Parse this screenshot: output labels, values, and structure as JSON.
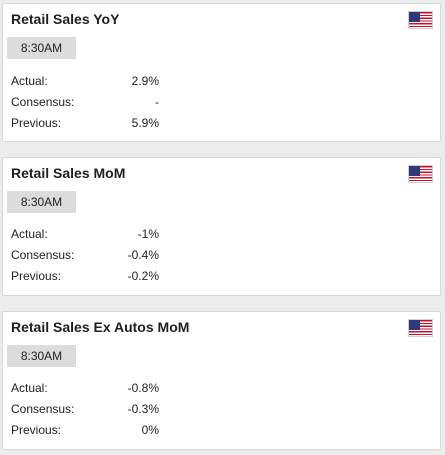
{
  "cards": [
    {
      "title": "Retail Sales YoY",
      "time": "8:30AM",
      "flag": "us-flag-icon",
      "rows": [
        {
          "label": "Actual:",
          "value": "2.9%"
        },
        {
          "label": "Consensus:",
          "value": "-"
        },
        {
          "label": "Previous:",
          "value": "5.9%"
        }
      ]
    },
    {
      "title": "Retail Sales MoM",
      "time": "8:30AM",
      "flag": "us-flag-icon",
      "rows": [
        {
          "label": "Actual:",
          "value": "-1%"
        },
        {
          "label": "Consensus:",
          "value": "-0.4%"
        },
        {
          "label": "Previous:",
          "value": "-0.2%"
        }
      ]
    },
    {
      "title": "Retail Sales Ex Autos MoM",
      "time": "8:30AM",
      "flag": "us-flag-icon",
      "rows": [
        {
          "label": "Actual:",
          "value": "-0.8%"
        },
        {
          "label": "Consensus:",
          "value": "-0.3%"
        },
        {
          "label": "Previous:",
          "value": "0%"
        }
      ]
    }
  ],
  "colors": {
    "background": "#ececec",
    "card": "#ffffff",
    "badge": "#dcdcdc",
    "text": "#222222"
  }
}
